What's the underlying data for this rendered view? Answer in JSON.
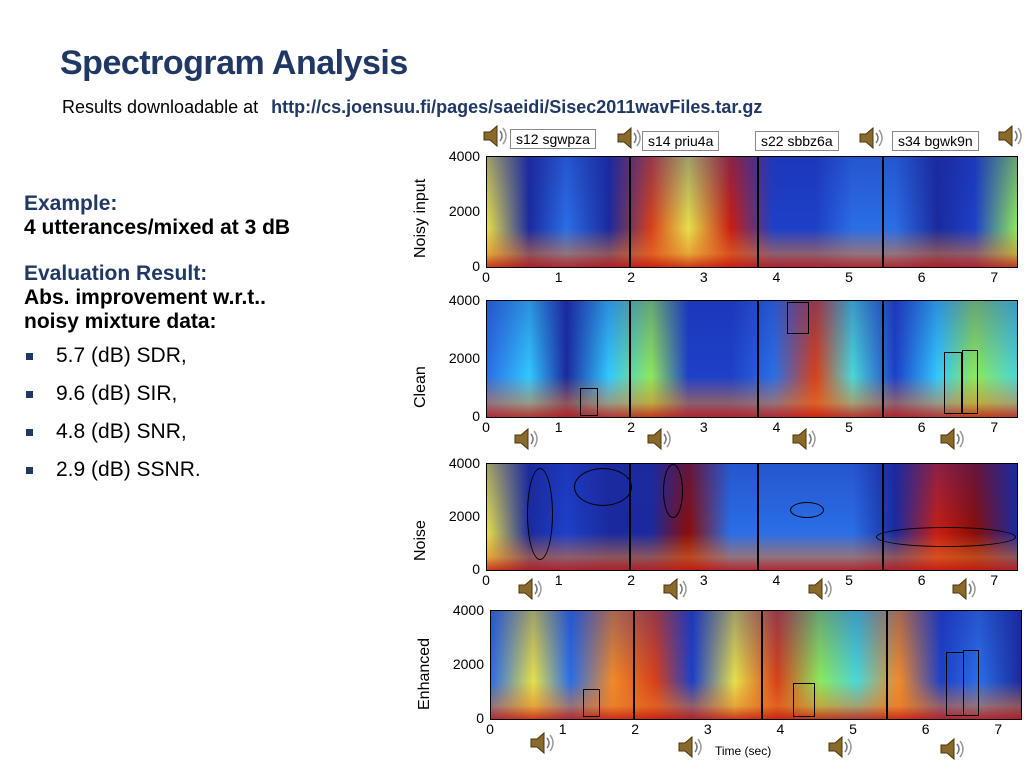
{
  "slide": {
    "title": "Spectrogram Analysis",
    "subtitle_prefix": "Results downloadable at",
    "subtitle_url": "http://cs.joensuu.fi/pages/saeidi/Sisec2011wavFiles.tar.gz"
  },
  "left": {
    "example_heading": "Example:",
    "example_text": "4 utterances/mixed at 3 dB",
    "eval_heading": "Evaluation Result:",
    "eval_text_1": "Abs. improvement w.r.t..",
    "eval_text_2": "noisy mixture data:",
    "bullets": [
      "5.7 (dB) SDR,",
      "9.6 (dB) SIR,",
      "4.8 (dB) SNR,",
      "2.9 (dB) SSNR."
    ]
  },
  "utterance_tags": [
    "s12 sgwpza",
    "s14 priu4a",
    "s22 sbbz6a",
    "s34 bgwk9n"
  ],
  "panels": [
    {
      "label": "Noisy input"
    },
    {
      "label": "Clean"
    },
    {
      "label": "Noise"
    },
    {
      "label": "Enhanced"
    }
  ],
  "y_ticks": [
    "4000",
    "2000",
    "0"
  ],
  "x_ticks": [
    "0",
    "1",
    "2",
    "3",
    "4",
    "5",
    "6",
    "7"
  ],
  "time_label": "Time (sec)",
  "icons": {
    "speaker": "speaker-icon"
  },
  "colors": {
    "title": "#1f3864",
    "spec_low": "#1a2a9e",
    "spec_mid": "#32c8ff",
    "spec_hi": "#c81e12"
  }
}
